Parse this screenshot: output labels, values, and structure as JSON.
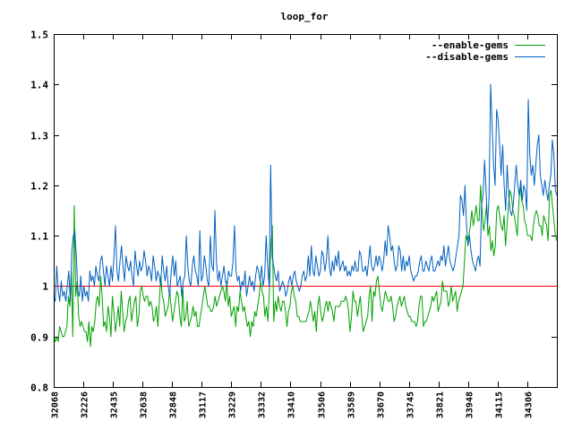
{
  "chart_data": {
    "type": "line",
    "title": "loop_for",
    "xlabel": "",
    "ylabel": "",
    "ylim": [
      0.8,
      1.5
    ],
    "y_ticks": [
      "0.8",
      "0.9",
      "1",
      "1.1",
      "1.2",
      "1.3",
      "1.4",
      "1.5"
    ],
    "y_tick_values": [
      0.8,
      0.9,
      1.0,
      1.1,
      1.2,
      1.3,
      1.4,
      1.5
    ],
    "x_ticks": [
      "32068",
      "32226",
      "32435",
      "32638",
      "32848",
      "33117",
      "33229",
      "33332",
      "33410",
      "33506",
      "33589",
      "33670",
      "33745",
      "33821",
      "33948",
      "34115",
      "34306"
    ],
    "reference_line": {
      "value": 1.0,
      "color": "#ff0000"
    },
    "legend_position": "top-right",
    "grid": false,
    "series": [
      {
        "name": "--enable-gems",
        "color": "#00a000",
        "values": [
          0.9,
          0.89,
          0.9,
          0.89,
          0.92,
          0.91,
          0.9,
          0.9,
          0.91,
          0.92,
          0.98,
          0.96,
          1.03,
          0.9,
          1.16,
          0.98,
          1.01,
          0.94,
          0.92,
          0.93,
          0.92,
          0.91,
          0.91,
          0.89,
          0.93,
          0.88,
          0.92,
          0.91,
          0.93,
          0.97,
          0.98,
          0.96,
          1.02,
          0.98,
          0.92,
          0.93,
          0.91,
          0.96,
          0.94,
          0.9,
          0.98,
          0.95,
          0.91,
          0.93,
          0.96,
          0.92,
          0.99,
          0.95,
          0.91,
          0.93,
          0.94,
          0.97,
          0.98,
          0.93,
          0.95,
          0.97,
          0.98,
          0.92,
          0.94,
          0.99,
          1.0,
          0.98,
          0.97,
          0.98,
          0.98,
          0.96,
          0.97,
          0.96,
          0.93,
          0.94,
          0.96,
          0.92,
          0.97,
          1.02,
          0.98,
          0.97,
          0.94,
          0.95,
          0.96,
          0.99,
          0.96,
          0.93,
          0.95,
          0.97,
          0.99,
          0.98,
          0.94,
          0.92,
          1.0,
          0.93,
          0.94,
          0.97,
          0.92,
          0.93,
          0.94,
          0.96,
          0.94,
          0.95,
          0.92,
          0.92,
          0.94,
          0.96,
          0.98,
          1.0,
          0.98,
          0.96,
          0.96,
          0.95,
          0.95,
          0.96,
          0.98,
          0.96,
          0.97,
          0.98,
          0.99,
          1.0,
          0.99,
          0.97,
          1.01,
          0.96,
          0.98,
          0.94,
          0.95,
          0.96,
          0.92,
          0.96,
          0.95,
          0.99,
          0.97,
          0.95,
          0.96,
          0.94,
          0.92,
          0.93,
          0.9,
          0.93,
          0.92,
          0.95,
          0.94,
          0.96,
          0.98,
          1.01,
          0.99,
          0.98,
          0.94,
          0.96,
          0.93,
          0.99,
          1.08,
          1.12,
          0.93,
          0.97,
          0.95,
          0.98,
          0.96,
          0.95,
          0.97,
          0.97,
          0.95,
          0.92,
          0.95,
          0.96,
          0.99,
          1.0,
          0.98,
          0.97,
          0.94,
          0.94,
          0.93,
          0.93,
          0.93,
          0.93,
          0.93,
          0.94,
          0.95,
          0.97,
          0.95,
          0.93,
          0.95,
          0.91,
          0.96,
          0.98,
          0.95,
          0.93,
          0.94,
          0.96,
          0.97,
          0.95,
          0.97,
          0.96,
          0.95,
          0.93,
          0.96,
          0.96,
          0.96,
          0.96,
          0.97,
          0.97,
          0.97,
          0.98,
          0.97,
          0.95,
          0.91,
          0.94,
          0.99,
          0.97,
          0.97,
          0.94,
          0.96,
          0.98,
          0.94,
          0.91,
          0.92,
          0.93,
          0.94,
          0.98,
          1.0,
          0.93,
          0.99,
          0.98,
          1.01,
          1.02,
          0.99,
          0.96,
          0.95,
          0.97,
          0.99,
          0.98,
          0.97,
          0.97,
          0.98,
          0.96,
          0.93,
          0.94,
          0.96,
          0.97,
          0.98,
          0.96,
          0.97,
          0.98,
          0.96,
          0.95,
          0.94,
          0.94,
          0.93,
          0.93,
          0.93,
          0.92,
          0.93,
          0.96,
          0.98,
          0.98,
          0.92,
          0.93,
          0.93,
          0.94,
          0.95,
          0.96,
          0.98,
          0.97,
          0.98,
          0.99,
          0.95,
          0.96,
          0.97,
          1.01,
          0.99,
          0.99,
          0.99,
          0.96,
          0.97,
          1.0,
          0.97,
          0.98,
          0.99,
          0.95,
          0.97,
          0.98,
          0.99,
          1.0,
          1.05,
          1.1,
          1.09,
          1.1,
          1.12,
          1.15,
          1.12,
          1.14,
          1.16,
          1.13,
          1.13,
          1.2,
          1.15,
          1.11,
          1.13,
          1.16,
          1.1,
          1.12,
          1.07,
          1.09,
          1.06,
          1.08,
          1.15,
          1.16,
          1.14,
          1.12,
          1.11,
          1.14,
          1.08,
          1.12,
          1.16,
          1.19,
          1.18,
          1.15,
          1.14,
          1.12,
          1.1,
          1.16,
          1.2,
          1.17,
          1.16,
          1.13,
          1.12,
          1.1,
          1.1,
          1.1,
          1.09,
          1.12,
          1.14,
          1.15,
          1.14,
          1.12,
          1.12,
          1.1,
          1.14,
          1.13,
          1.12,
          1.09,
          1.18,
          1.19,
          1.16,
          1.13,
          1.1,
          1.09
        ]
      },
      {
        "name": "--disable-gems",
        "color": "#0060c0",
        "values": [
          0.98,
          0.97,
          1.04,
          0.99,
          0.97,
          1.01,
          0.98,
          0.99,
          0.97,
          1.0,
          1.03,
          0.97,
          1.07,
          1.1,
          1.11,
          1.06,
          0.99,
          0.98,
          1.02,
          0.97,
          1.0,
          0.98,
          0.99,
          0.97,
          1.03,
          1.01,
          1.02,
          1.0,
          1.04,
          1.02,
          1.01,
          1.05,
          1.06,
          1.03,
          1.0,
          1.04,
          1.02,
          1.0,
          1.04,
          1.01,
          1.06,
          1.12,
          1.03,
          1.01,
          1.05,
          1.08,
          1.04,
          1.01,
          1.06,
          1.04,
          1.03,
          1.05,
          1.02,
          1.0,
          1.07,
          1.04,
          1.02,
          1.05,
          1.03,
          1.04,
          1.07,
          1.05,
          1.02,
          1.04,
          1.03,
          1.01,
          1.06,
          1.04,
          1.01,
          1.03,
          1.02,
          1.0,
          1.06,
          1.03,
          1.01,
          1.04,
          1.0,
          0.98,
          1.03,
          1.06,
          1.02,
          1.05,
          1.0,
          1.01,
          1.02,
          0.98,
          1.01,
          1.02,
          1.1,
          1.04,
          1.01,
          1.0,
          1.04,
          1.06,
          1.03,
          1.02,
          1.0,
          1.11,
          1.01,
          1.02,
          1.06,
          1.04,
          1.01,
          1.0,
          1.1,
          1.04,
          1.03,
          1.15,
          1.05,
          1.01,
          1.03,
          1.0,
          1.02,
          1.04,
          1.01,
          1.0,
          1.03,
          1.02,
          1.02,
          1.05,
          1.12,
          1.03,
          1.01,
          1.02,
          0.99,
          1.01,
          1.0,
          1.03,
          0.98,
          1.0,
          1.02,
          1.0,
          1.01,
          0.99,
          1.02,
          1.04,
          1.03,
          1.01,
          1.04,
          1.0,
          1.02,
          1.1,
          1.04,
          1.0,
          1.24,
          1.06,
          1.04,
          1.02,
          1.01,
          1.03,
          0.99,
          1.0,
          1.01,
          1.0,
          0.98,
          0.99,
          1.01,
          1.02,
          1.0,
          1.02,
          1.03,
          1.01,
          1.0,
          0.99,
          1.0,
          1.02,
          1.03,
          1.01,
          1.02,
          1.06,
          1.02,
          1.08,
          1.03,
          1.02,
          1.06,
          1.04,
          1.02,
          1.03,
          1.07,
          1.06,
          1.03,
          1.05,
          1.1,
          1.04,
          1.02,
          1.05,
          1.03,
          1.06,
          1.04,
          1.07,
          1.03,
          1.04,
          1.05,
          1.03,
          1.04,
          1.02,
          1.03,
          1.02,
          1.04,
          1.03,
          1.05,
          1.03,
          1.03,
          1.07,
          1.06,
          1.03,
          1.03,
          1.04,
          1.02,
          1.05,
          1.08,
          1.04,
          1.03,
          1.04,
          1.06,
          1.04,
          1.06,
          1.05,
          1.03,
          1.05,
          1.09,
          1.06,
          1.12,
          1.1,
          1.07,
          1.08,
          1.05,
          1.03,
          1.04,
          1.08,
          1.07,
          1.03,
          1.06,
          1.03,
          1.05,
          1.04,
          1.06,
          1.03,
          1.02,
          1.01,
          1.02,
          1.02,
          1.03,
          1.05,
          1.06,
          1.03,
          1.03,
          1.05,
          1.04,
          1.03,
          1.05,
          1.06,
          1.03,
          1.03,
          1.04,
          1.05,
          1.04,
          1.06,
          1.05,
          1.08,
          1.04,
          1.06,
          1.08,
          1.05,
          1.04,
          1.03,
          1.04,
          1.06,
          1.08,
          1.1,
          1.18,
          1.17,
          1.14,
          1.2,
          1.12,
          1.08,
          1.1,
          1.07,
          1.05,
          1.04,
          1.03,
          1.05,
          1.06,
          1.04,
          1.16,
          1.18,
          1.25,
          1.19,
          1.12,
          1.18,
          1.4,
          1.32,
          1.24,
          1.2,
          1.35,
          1.33,
          1.28,
          1.22,
          1.28,
          1.2,
          1.15,
          1.24,
          1.18,
          1.15,
          1.14,
          1.16,
          1.2,
          1.24,
          1.2,
          1.18,
          1.21,
          1.17,
          1.2,
          1.19,
          1.15,
          1.37,
          1.26,
          1.22,
          1.24,
          1.2,
          1.24,
          1.28,
          1.3,
          1.22,
          1.2,
          1.18,
          1.21,
          1.19,
          1.17,
          1.2,
          1.22,
          1.29,
          1.26,
          1.19,
          1.18
        ]
      }
    ]
  }
}
